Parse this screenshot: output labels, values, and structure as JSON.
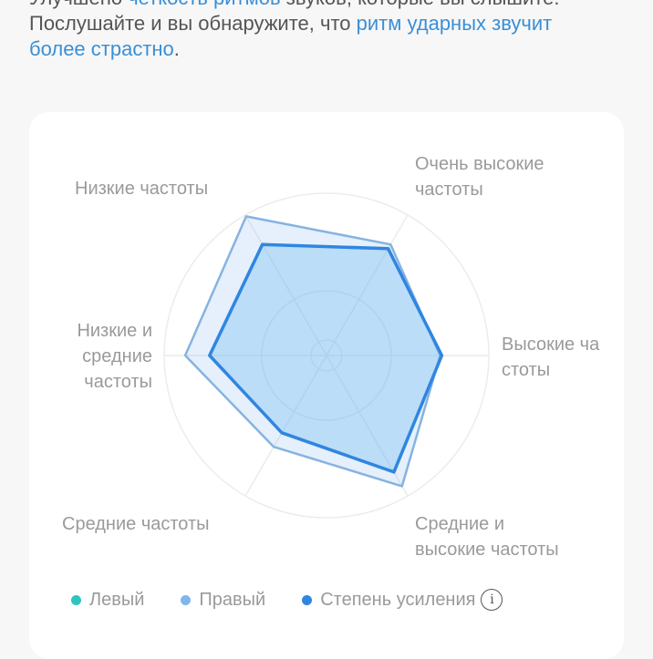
{
  "intro": {
    "line1_a": "Улучшено ",
    "line1_link": "четкость ритмов",
    "line1_b": " звуков, которые вы слышите.",
    "line2_a": "Послушайте и вы обнаружите, что ",
    "line2_link": "ритм ударных звучит",
    "line3_link": "более страстно",
    "line3_end": "."
  },
  "chart_data": {
    "type": "radar",
    "axes": [
      "Высокие частоты",
      "Очень высокие частоты",
      "Низкие частоты",
      "Низкие и средние частоты",
      "Средние частоты",
      "Средние и высокие частоты"
    ],
    "axis_labels": {
      "high": "Высокие ча\nстоты",
      "very_high": "Очень высокие\nчастоты",
      "low": "Низкие частоты",
      "low_mid": "Низкие и\nсредние\nчастоты",
      "mid": "Средние частоты",
      "mid_high": "Средние и\nвысокие частоты"
    },
    "range": [
      0,
      100
    ],
    "grid": "concentric circles",
    "series": [
      {
        "name": "Левый",
        "color": "#2ec4c0",
        "values": []
      },
      {
        "name": "Правый",
        "color": "#7fb6ee",
        "values": [
          70,
          79,
          99,
          87,
          65,
          93
        ]
      },
      {
        "name": "Степень усиления",
        "color": "#2f86e0",
        "values": [
          71,
          76,
          79,
          72,
          55,
          83
        ]
      }
    ],
    "legend_position": "bottom"
  },
  "legend": {
    "info_icon": "info-icon",
    "info_glyph": "i"
  }
}
